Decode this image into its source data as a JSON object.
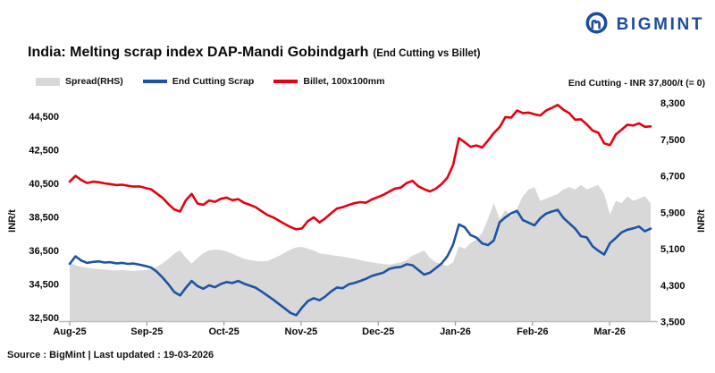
{
  "logo": {
    "text": "BIGMINT"
  },
  "header": {
    "title": "India: Melting scrap index DAP-Mandi Gobindgarh",
    "subtitle": "(End Cutting vs Billet)"
  },
  "legend": [
    {
      "label": "Spread(RHS)",
      "color": "#d8d8d8",
      "type": "area"
    },
    {
      "label": "End Cutting Scrap",
      "color": "#1c54a3",
      "type": "line"
    },
    {
      "label": "Billet, 100x100mm",
      "color": "#e60011",
      "type": "line"
    }
  ],
  "annotation": "End Cutting - INR 37,800/t (= 0)",
  "footer": {
    "source": "Source : BigMint | Last updated : 19-03-2026"
  },
  "chart_data": {
    "type": "line",
    "title": "India: Melting scrap index DAP-Mandi Gobindgarh (End Cutting vs Billet)",
    "x_axis": {
      "labels": [
        "Aug-25",
        "Sep-25",
        "Oct-25",
        "Nov-25",
        "Dec-25",
        "Jan-26",
        "Feb-26",
        "Mar-26"
      ],
      "last_date": "19-03-2026",
      "sampling": "uniform across Aug-2025 to 19-03-2026"
    },
    "left_axis": {
      "label": "INR/t",
      "min": 32500,
      "max": 44500,
      "ticks": [
        44500,
        42500,
        40500,
        38500,
        36500,
        34500,
        32500
      ]
    },
    "right_axis": {
      "label": "INR/t",
      "min": 3500,
      "max": 8300,
      "ticks": [
        8300,
        7500,
        6700,
        5900,
        5100,
        4300,
        3500
      ]
    },
    "grid": false,
    "legend_position": "top-left",
    "series": [
      {
        "name": "Billet, 100x100mm",
        "axis": "left",
        "color": "#e60011",
        "kind": "line",
        "values": [
          40600,
          40950,
          40700,
          40520,
          40600,
          40570,
          40500,
          40460,
          40400,
          40420,
          40360,
          40310,
          40320,
          40230,
          40150,
          39890,
          39630,
          39260,
          38950,
          38820,
          39500,
          39870,
          39300,
          39220,
          39480,
          39400,
          39580,
          39650,
          39500,
          39560,
          39350,
          39220,
          39080,
          38850,
          38620,
          38480,
          38280,
          38080,
          37900,
          37760,
          37820,
          38250,
          38480,
          38170,
          38420,
          38720,
          39000,
          39080,
          39210,
          39320,
          39380,
          39350,
          39540,
          39680,
          39820,
          40010,
          40190,
          40250,
          40520,
          40650,
          40330,
          40160,
          40020,
          40180,
          40450,
          40830,
          41600,
          43200,
          42950,
          42680,
          42760,
          42640,
          43050,
          43500,
          43850,
          44450,
          44420,
          44840,
          44690,
          44720,
          44620,
          44550,
          44840,
          45000,
          45180,
          44890,
          44680,
          44300,
          44320,
          44020,
          43650,
          43520,
          42890,
          42780,
          43420,
          43700,
          44000,
          43950,
          44080,
          43870,
          43900
        ]
      },
      {
        "name": "End Cutting Scrap",
        "axis": "left",
        "color": "#1c54a3",
        "kind": "line",
        "values": [
          35700,
          36150,
          35900,
          35760,
          35820,
          35850,
          35780,
          35800,
          35730,
          35760,
          35700,
          35720,
          35650,
          35580,
          35480,
          35230,
          34880,
          34480,
          34020,
          33820,
          34280,
          34680,
          34380,
          34220,
          34420,
          34310,
          34500,
          34620,
          34560,
          34680,
          34520,
          34400,
          34280,
          34060,
          33820,
          33580,
          33310,
          33050,
          32780,
          32640,
          33100,
          33480,
          33650,
          33530,
          33760,
          34060,
          34290,
          34250,
          34480,
          34560,
          34680,
          34810,
          34980,
          35080,
          35180,
          35400,
          35480,
          35520,
          35680,
          35620,
          35340,
          35060,
          35170,
          35440,
          35720,
          36150,
          36850,
          38050,
          37880,
          37420,
          37270,
          36920,
          36820,
          37100,
          38180,
          38480,
          38720,
          38860,
          38310,
          38160,
          38000,
          38420,
          38700,
          38820,
          38920,
          38430,
          38120,
          37800,
          37350,
          37280,
          36750,
          36480,
          36260,
          36940,
          37240,
          37580,
          37740,
          37820,
          37930,
          37640,
          37800
        ]
      },
      {
        "name": "Spread(RHS)",
        "axis": "right",
        "color": "#d8d8d8",
        "kind": "area",
        "values": [
          4780,
          4740,
          4700,
          4680,
          4660,
          4650,
          4640,
          4630,
          4620,
          4630,
          4620,
          4610,
          4620,
          4630,
          4650,
          4700,
          4780,
          4880,
          4990,
          5060,
          4900,
          4770,
          4900,
          5000,
          5060,
          5080,
          5070,
          5040,
          4990,
          4930,
          4880,
          4850,
          4830,
          4820,
          4830,
          4880,
          4940,
          5010,
          5080,
          5130,
          5140,
          5100,
          5060,
          5000,
          4980,
          4960,
          4940,
          4930,
          4900,
          4880,
          4850,
          4820,
          4800,
          4780,
          4760,
          4750,
          4770,
          4800,
          4850,
          4950,
          5000,
          5060,
          4900,
          4800,
          4760,
          4720,
          4800,
          5150,
          5100,
          5220,
          5300,
          5450,
          5750,
          6100,
          5750,
          5950,
          5800,
          5980,
          6250,
          6400,
          6450,
          6150,
          6200,
          6250,
          6300,
          6400,
          6450,
          6400,
          6500,
          6400,
          6450,
          6500,
          6300,
          5850,
          6150,
          6100,
          6250,
          6150,
          6200,
          6250,
          6100
        ]
      }
    ],
    "latest_values_note": "End Cutting - INR 37,800/t (= 0)"
  }
}
